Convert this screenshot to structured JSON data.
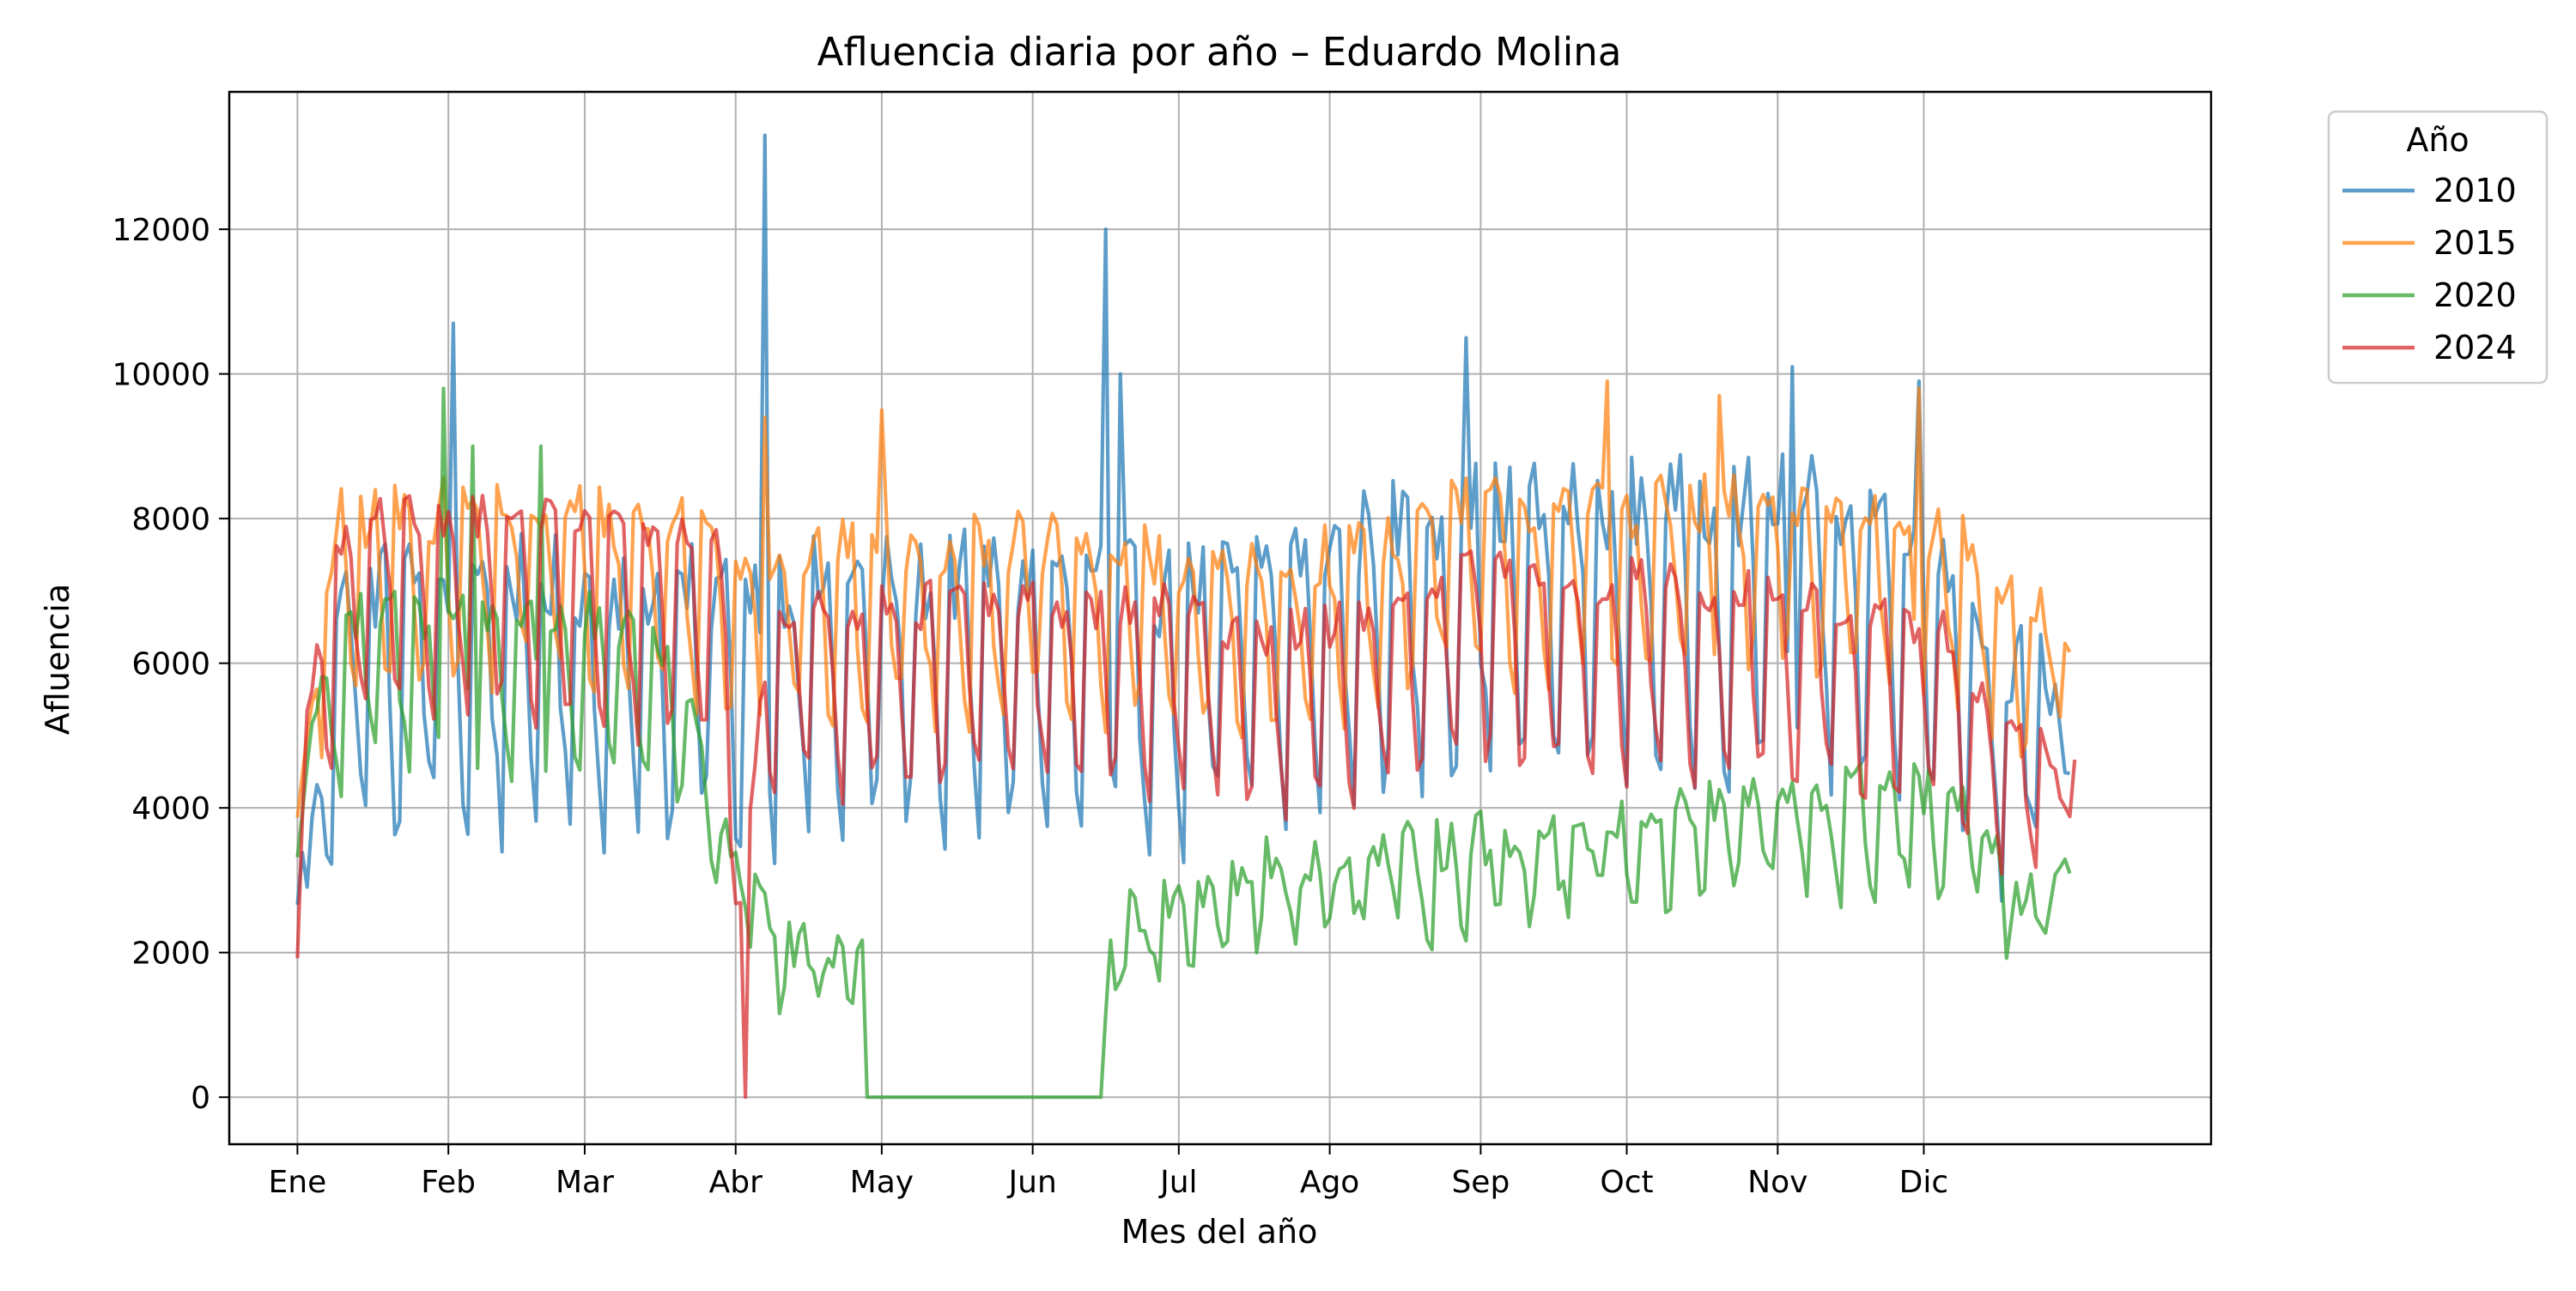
{
  "chart_data": {
    "type": "line",
    "title": "Afluencia diaria por año – Eduardo Molina",
    "xlabel": "Mes del año",
    "ylabel": "Afluencia",
    "x_unit": "day_of_year",
    "xlim": [
      -13,
      394
    ],
    "ylim": [
      -650,
      13900
    ],
    "grid": true,
    "x_ticks": [
      {
        "value": 1,
        "label": "Ene"
      },
      {
        "value": 32,
        "label": "Feb"
      },
      {
        "value": 60,
        "label": "Mar"
      },
      {
        "value": 91,
        "label": "Abr"
      },
      {
        "value": 121,
        "label": "May"
      },
      {
        "value": 152,
        "label": "Jun"
      },
      {
        "value": 182,
        "label": "Jul"
      },
      {
        "value": 213,
        "label": "Ago"
      },
      {
        "value": 244,
        "label": "Sep"
      },
      {
        "value": 274,
        "label": "Oct"
      },
      {
        "value": 305,
        "label": "Nov"
      },
      {
        "value": 335,
        "label": "Dic"
      }
    ],
    "y_ticks": [
      0,
      2000,
      4000,
      6000,
      8000,
      10000,
      12000
    ],
    "y_tick_labels": [
      "0",
      "2000",
      "4000",
      "6000",
      "8000",
      "10000",
      "12000"
    ],
    "legend": {
      "title": "Año",
      "position": "outside-right"
    },
    "series": [
      {
        "name": "2010",
        "color": "#1f77b4",
        "days": 365,
        "amplitude": 2400,
        "noise": 650,
        "keypoints": [
          [
            1,
            3300
          ],
          [
            3,
            2800
          ],
          [
            7,
            5500
          ],
          [
            12,
            6000
          ],
          [
            30,
            6200
          ],
          [
            60,
            6100
          ],
          [
            90,
            6000
          ],
          [
            100,
            6100
          ],
          [
            150,
            6200
          ],
          [
            180,
            6000
          ],
          [
            240,
            7100
          ],
          [
            300,
            7200
          ],
          [
            330,
            7100
          ],
          [
            340,
            6500
          ],
          [
            350,
            5300
          ],
          [
            358,
            5000
          ],
          [
            365,
            5400
          ]
        ],
        "spikes": [
          [
            33,
            10700
          ],
          [
            97,
            13300
          ],
          [
            167,
            12000
          ],
          [
            170,
            10000
          ],
          [
            241,
            10500
          ],
          [
            308,
            10100
          ],
          [
            334,
            9900
          ]
        ]
      },
      {
        "name": "2015",
        "color": "#ff7f0e",
        "days": 365,
        "amplitude": 1500,
        "noise": 450,
        "keypoints": [
          [
            1,
            3600
          ],
          [
            5,
            6000
          ],
          [
            10,
            7300
          ],
          [
            40,
            7500
          ],
          [
            80,
            7300
          ],
          [
            95,
            6800
          ],
          [
            150,
            7000
          ],
          [
            175,
            6800
          ],
          [
            200,
            6500
          ],
          [
            240,
            7500
          ],
          [
            300,
            7500
          ],
          [
            330,
            7400
          ],
          [
            345,
            6900
          ],
          [
            355,
            6100
          ],
          [
            365,
            5900
          ]
        ],
        "spikes": [
          [
            97,
            9400
          ],
          [
            121,
            9500
          ],
          [
            270,
            9900
          ],
          [
            293,
            9700
          ],
          [
            334,
            9800
          ]
        ]
      },
      {
        "name": "2020",
        "color": "#2ca02c",
        "days": 365,
        "amplitude": 1500,
        "noise": 400,
        "keypoints": [
          [
            1,
            3400
          ],
          [
            3,
            5000
          ],
          [
            15,
            6100
          ],
          [
            60,
            6000
          ],
          [
            80,
            5400
          ],
          [
            85,
            4300
          ],
          [
            88,
            3500
          ],
          [
            95,
            2800
          ],
          [
            100,
            1800
          ],
          [
            110,
            1800
          ],
          [
            115,
            1800
          ],
          [
            117,
            2200
          ],
          [
            118,
            0
          ],
          [
            166,
            0
          ],
          [
            168,
            1700
          ],
          [
            172,
            2300
          ],
          [
            180,
            2600
          ],
          [
            200,
            2900
          ],
          [
            240,
            3200
          ],
          [
            290,
            3700
          ],
          [
            330,
            3900
          ],
          [
            345,
            3600
          ],
          [
            355,
            2500
          ],
          [
            360,
            2500
          ],
          [
            365,
            3300
          ]
        ],
        "flat_ranges": [
          [
            118,
            166
          ]
        ],
        "spikes": [
          [
            31,
            9800
          ],
          [
            37,
            9000
          ],
          [
            51,
            9000
          ]
        ]
      },
      {
        "name": "2024",
        "color": "#d62728",
        "days": 366,
        "amplitude": 1800,
        "noise": 350,
        "keypoints": [
          [
            1,
            2300
          ],
          [
            3,
            5000
          ],
          [
            6,
            6300
          ],
          [
            15,
            7100
          ],
          [
            40,
            7300
          ],
          [
            60,
            7000
          ],
          [
            88,
            6800
          ],
          [
            90,
            4000
          ],
          [
            92,
            3300
          ],
          [
            94,
            3400
          ],
          [
            97,
            6000
          ],
          [
            100,
            6000
          ],
          [
            150,
            6100
          ],
          [
            180,
            6000
          ],
          [
            200,
            5700
          ],
          [
            230,
            6000
          ],
          [
            240,
            6500
          ],
          [
            300,
            6200
          ],
          [
            340,
            5700
          ],
          [
            350,
            4800
          ],
          [
            358,
            4300
          ],
          [
            366,
            4400
          ]
        ],
        "spikes": [
          [
            93,
            0
          ]
        ]
      }
    ]
  }
}
